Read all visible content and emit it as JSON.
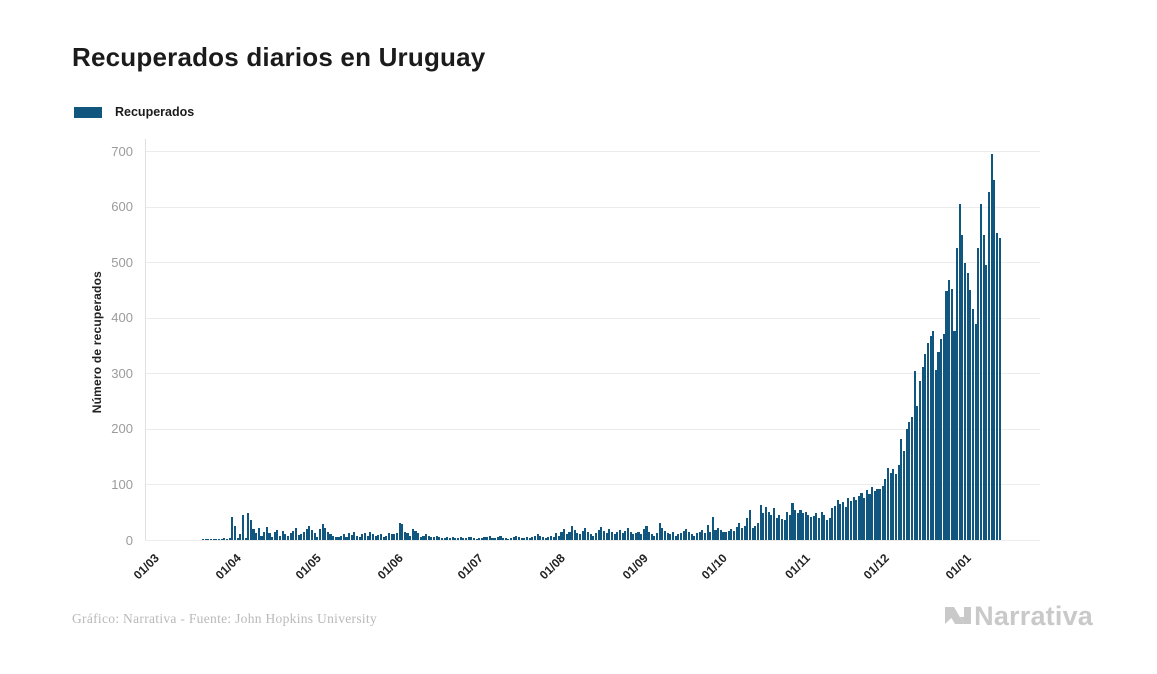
{
  "page": {
    "title": "Recuperados diarios en Uruguay",
    "footer_credit": "Gráfico: Narrativa - Fuente: John Hopkins University",
    "brand": "Narrativa"
  },
  "legend": {
    "label": "Recuperados"
  },
  "colors": {
    "bar": "#10567E",
    "grid": "#ececec",
    "axis_line": "#e0e0e0",
    "y_tick_text": "#9b9b9b",
    "x_tick_text": "#222222",
    "title_text": "#1b1b1b",
    "footer_text": "#b9b9b9",
    "logo_text": "#c9c9c9"
  },
  "chart_data": {
    "type": "bar",
    "title": "Recuperados diarios en Uruguay",
    "series_name": "Recuperados",
    "xlabel": "",
    "ylabel": "Número de recuperados",
    "ylim": [
      0,
      700
    ],
    "y_ticks": [
      0,
      100,
      200,
      300,
      400,
      500,
      600,
      700
    ],
    "grid": "horizontal",
    "legend_position": "top-left",
    "start_date": "2020-03-01",
    "end_date": "2021-01-15",
    "x_tick_labels": [
      "01/03",
      "01/04",
      "01/05",
      "01/06",
      "01/07",
      "01/08",
      "01/09",
      "01/10",
      "01/11",
      "01/12",
      "01/01"
    ],
    "x_tick_day_offsets": [
      0,
      31,
      61,
      92,
      122,
      153,
      184,
      214,
      245,
      275,
      306
    ],
    "values": [
      0,
      0,
      0,
      0,
      0,
      0,
      0,
      0,
      0,
      0,
      0,
      0,
      0,
      0,
      0,
      0,
      0,
      0,
      0,
      0,
      1,
      1,
      2,
      1,
      2,
      2,
      1,
      2,
      3,
      2,
      3,
      42,
      25,
      4,
      10,
      45,
      3,
      48,
      36,
      20,
      12,
      22,
      8,
      15,
      24,
      12,
      6,
      14,
      18,
      8,
      16,
      11,
      7,
      13,
      16,
      21,
      9,
      11,
      15,
      19,
      26,
      18,
      12,
      6,
      20,
      28,
      22,
      15,
      10,
      8,
      6,
      5,
      8,
      10,
      6,
      12,
      9,
      14,
      8,
      6,
      10,
      12,
      8,
      15,
      10,
      7,
      9,
      11,
      6,
      8,
      12,
      10,
      10,
      12,
      30,
      28,
      15,
      12,
      8,
      20,
      16,
      12,
      6,
      8,
      10,
      8,
      6,
      5,
      8,
      6,
      4,
      3,
      5,
      4,
      6,
      3,
      4,
      5,
      3,
      4,
      5,
      6,
      3,
      2,
      4,
      3,
      5,
      6,
      8,
      4,
      3,
      5,
      7,
      4,
      3,
      2,
      4,
      5,
      8,
      6,
      4,
      3,
      5,
      4,
      6,
      8,
      10,
      7,
      5,
      4,
      6,
      8,
      5,
      12,
      8,
      15,
      20,
      10,
      14,
      25,
      18,
      12,
      10,
      16,
      22,
      14,
      10,
      8,
      12,
      18,
      24,
      16,
      12,
      20,
      15,
      10,
      14,
      18,
      12,
      16,
      22,
      14,
      10,
      12,
      15,
      10,
      20,
      25,
      14,
      10,
      8,
      12,
      30,
      22,
      16,
      12,
      10,
      14,
      8,
      10,
      12,
      16,
      20,
      14,
      10,
      8,
      12,
      15,
      18,
      12,
      27,
      15,
      42,
      18,
      21,
      18,
      15,
      14,
      16,
      20,
      16,
      24,
      30,
      22,
      26,
      40,
      54,
      21,
      25,
      30,
      63,
      48,
      60,
      50,
      45,
      57,
      40,
      45,
      38,
      36,
      50,
      45,
      66,
      54,
      48,
      54,
      48,
      50,
      45,
      42,
      44,
      48,
      40,
      51,
      45,
      36,
      40,
      57,
      62,
      72,
      65,
      69,
      60,
      75,
      70,
      78,
      72,
      80,
      85,
      75,
      90,
      82,
      95,
      88,
      92,
      92,
      98,
      110,
      130,
      121,
      127,
      118,
      135,
      182,
      161,
      200,
      212,
      221,
      305,
      242,
      287,
      312,
      334,
      355,
      368,
      376,
      306,
      338,
      362,
      371,
      448,
      467,
      452,
      377,
      525,
      605,
      549,
      498,
      480,
      450,
      416,
      389,
      525,
      605,
      549,
      495,
      626,
      695,
      647,
      552,
      543
    ]
  }
}
